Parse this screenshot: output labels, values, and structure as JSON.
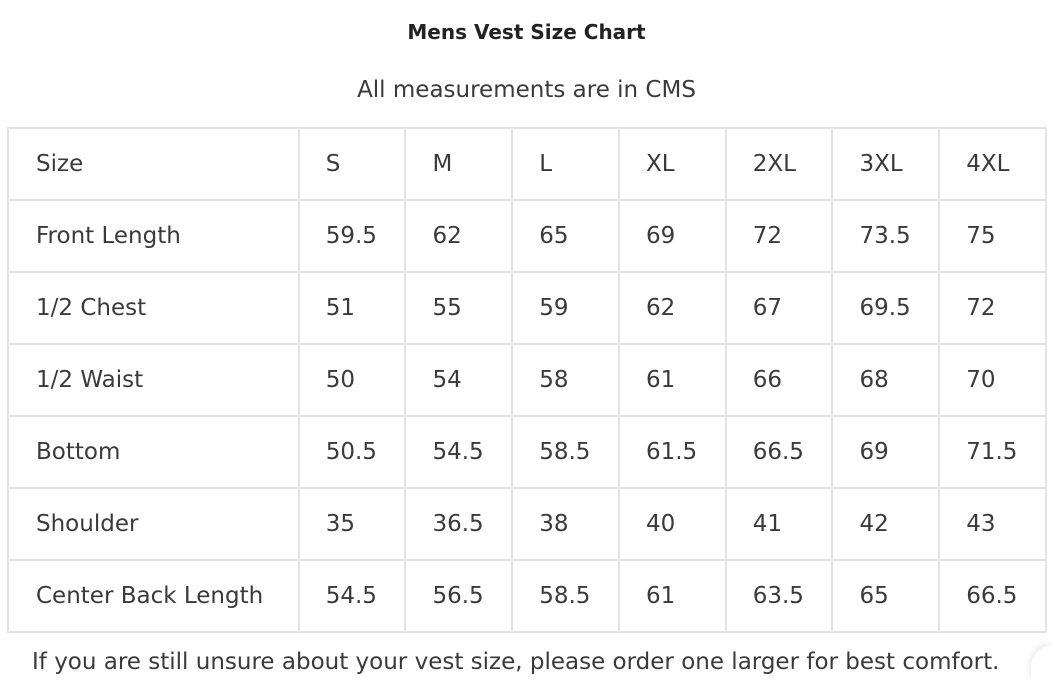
{
  "title": "Mens Vest Size Chart",
  "subtitle": "All measurements are in CMS",
  "table": {
    "header": [
      "Size",
      "S",
      "M",
      "L",
      "XL",
      "2XL",
      "3XL",
      "4XL"
    ],
    "rows": [
      [
        "Front Length",
        "59.5",
        "62",
        "65",
        "69",
        "72",
        "73.5",
        "75"
      ],
      [
        "1/2 Chest",
        "51",
        "55",
        "59",
        "62",
        "67",
        "69.5",
        "72"
      ],
      [
        "1/2 Waist",
        "50",
        "54",
        "58",
        "61",
        "66",
        "68",
        "70"
      ],
      [
        "Bottom",
        "50.5",
        "54.5",
        "58.5",
        "61.5",
        "66.5",
        "69",
        "71.5"
      ],
      [
        "Shoulder",
        "35",
        "36.5",
        "38",
        "40",
        "41",
        "42",
        "43"
      ],
      [
        "Center Back Length",
        "54.5",
        "56.5",
        "58.5",
        "61",
        "63.5",
        "65",
        "66.5"
      ]
    ]
  },
  "note": "If you are still unsure about your vest size, please order one larger for best comfort."
}
